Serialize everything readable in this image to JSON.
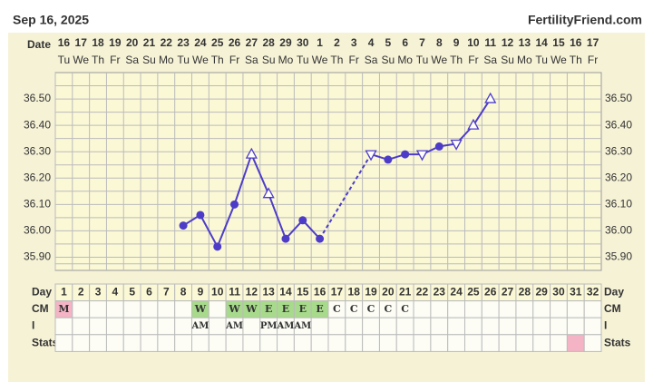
{
  "chart_data": {
    "type": "line",
    "title": "Sep 16, 2025",
    "site": "FertilityFriend.com",
    "x_label": "Date",
    "categories": [
      "16",
      "17",
      "18",
      "19",
      "20",
      "21",
      "22",
      "23",
      "24",
      "25",
      "26",
      "27",
      "28",
      "29",
      "30",
      "1",
      "2",
      "3",
      "4",
      "5",
      "6",
      "7",
      "8",
      "9",
      "10",
      "11",
      "12",
      "13",
      "14",
      "15",
      "16",
      "17"
    ],
    "weekdays": [
      "Tu",
      "We",
      "Th",
      "Fr",
      "Sa",
      "Su",
      "Mo",
      "Tu",
      "We",
      "Th",
      "Fr",
      "Sa",
      "Su",
      "Mo",
      "Tu",
      "We",
      "Th",
      "Fr",
      "Sa",
      "Su",
      "Mo",
      "Tu",
      "We",
      "Th",
      "Fr",
      "Sa",
      "Su",
      "Mo",
      "Tu",
      "We",
      "Th",
      "Fr"
    ],
    "values": [
      null,
      null,
      null,
      null,
      null,
      null,
      null,
      36.02,
      36.06,
      35.94,
      36.1,
      36.29,
      36.14,
      35.97,
      36.04,
      35.97,
      null,
      null,
      36.29,
      36.27,
      36.29,
      36.29,
      36.32,
      36.33,
      36.4,
      36.5,
      null,
      null,
      null,
      null,
      null,
      null
    ],
    "markers": [
      null,
      null,
      null,
      null,
      null,
      null,
      null,
      "circle",
      "circle",
      "circle",
      "circle",
      "tri-up",
      "tri-up",
      "circle",
      "circle",
      "circle",
      null,
      null,
      "tri-down",
      "circle",
      "circle",
      "tri-down",
      "circle",
      "tri-down",
      "tri-up",
      "tri-up",
      null,
      null,
      null,
      null,
      null,
      null
    ],
    "color": "#4d3cc8",
    "ylim": [
      35.85,
      36.6
    ],
    "yticks": [
      {
        "value": 35.9,
        "label": "35.90"
      },
      {
        "value": 36.0,
        "label": "36.00"
      },
      {
        "value": 36.1,
        "label": "36.10"
      },
      {
        "value": 36.2,
        "label": "36.20"
      },
      {
        "value": 36.3,
        "label": "36.30"
      },
      {
        "value": 36.4,
        "label": "36.40"
      },
      {
        "value": 36.5,
        "label": "36.50"
      }
    ],
    "grid": true,
    "rows": {
      "day": {
        "label": "Day",
        "values": [
          1,
          2,
          3,
          4,
          5,
          6,
          7,
          8,
          9,
          10,
          11,
          12,
          13,
          14,
          15,
          16,
          17,
          18,
          19,
          20,
          21,
          22,
          23,
          24,
          25,
          26,
          27,
          28,
          29,
          30,
          31,
          32
        ]
      },
      "cm": {
        "label": "CM",
        "values": [
          "M",
          null,
          null,
          null,
          null,
          null,
          null,
          null,
          "W",
          null,
          "W",
          "W",
          "E",
          "E",
          "E",
          "E",
          "C",
          "C",
          "C",
          "C",
          "C",
          null,
          null,
          null,
          null,
          null,
          null,
          null,
          null,
          null,
          null,
          null
        ],
        "colors": {
          "M": "#f4b4c6",
          "W": "#a8da8c",
          "E": "#a8da8c"
        }
      },
      "i": {
        "label": "I",
        "values": [
          null,
          null,
          null,
          null,
          null,
          null,
          null,
          null,
          "AM",
          null,
          "AM",
          null,
          "PM",
          "AM",
          "AM",
          null,
          null,
          null,
          null,
          null,
          null,
          null,
          null,
          null,
          null,
          null,
          null,
          null,
          null,
          null,
          null,
          null
        ]
      },
      "stats": {
        "label": "Stats",
        "highlight_day": 31,
        "color": "#f4b4c6"
      }
    }
  }
}
